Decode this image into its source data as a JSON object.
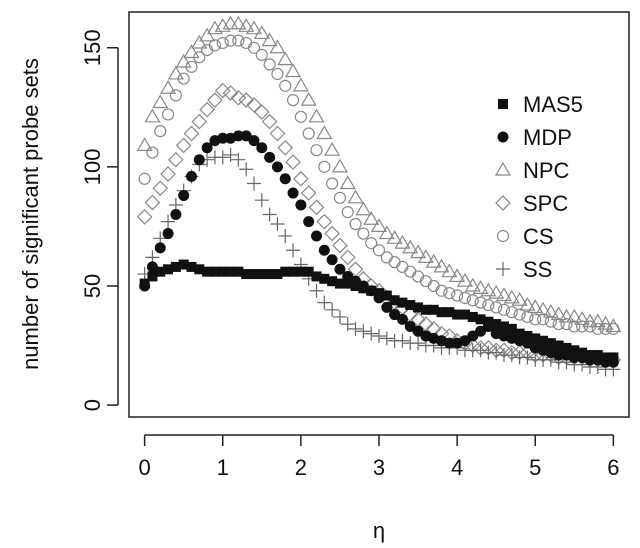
{
  "chart_data": {
    "type": "scatter",
    "xlabel": "η",
    "ylabel": "number of significant probe sets",
    "xlim": [
      -0.2,
      6.2
    ],
    "ylim": [
      -5,
      165
    ],
    "xticks": [
      "0",
      "1",
      "2",
      "3",
      "4",
      "5",
      "6"
    ],
    "yticks": [
      "0",
      "50",
      "100",
      "150"
    ],
    "legend_position": "right",
    "grid": false,
    "x": [
      0.0,
      0.1,
      0.2,
      0.3,
      0.4,
      0.5,
      0.6,
      0.7,
      0.8,
      0.9,
      1.0,
      1.1,
      1.2,
      1.3,
      1.4,
      1.5,
      1.6,
      1.7,
      1.8,
      1.9,
      2.0,
      2.1,
      2.2,
      2.3,
      2.4,
      2.5,
      2.6,
      2.7,
      2.8,
      2.9,
      3.0,
      3.1,
      3.2,
      3.3,
      3.4,
      3.5,
      3.6,
      3.7,
      3.8,
      3.9,
      4.0,
      4.1,
      4.2,
      4.3,
      4.4,
      4.5,
      4.6,
      4.7,
      4.8,
      4.9,
      5.0,
      5.1,
      5.2,
      5.3,
      5.4,
      5.5,
      5.6,
      5.7,
      5.8,
      5.9,
      6.0
    ],
    "series": [
      {
        "name": "MAS5",
        "marker": "square",
        "values": [
          51,
          54,
          56,
          57,
          58,
          59,
          58,
          57,
          56,
          56,
          56,
          56,
          56,
          55,
          55,
          55,
          55,
          55,
          56,
          56,
          56,
          56,
          54,
          53,
          52,
          51,
          51,
          50,
          49,
          48,
          47,
          46,
          44,
          43,
          42,
          41,
          40,
          40,
          39,
          39,
          38,
          38,
          37,
          36,
          35,
          34,
          33,
          32,
          30,
          29,
          28,
          27,
          26,
          25,
          24,
          23,
          22,
          21,
          21,
          20,
          20
        ]
      },
      {
        "name": "MDP",
        "marker": "circle",
        "values": [
          50,
          58,
          66,
          72,
          80,
          88,
          96,
          103,
          108,
          111,
          112,
          112,
          113,
          113,
          111,
          108,
          104,
          100,
          95,
          89,
          84,
          77,
          71,
          65,
          61,
          57,
          54,
          52,
          50,
          48,
          45,
          41,
          38,
          36,
          33,
          31,
          29,
          28,
          27,
          26,
          26,
          27,
          29,
          31,
          33,
          30,
          29,
          28,
          27,
          26,
          24,
          23,
          22,
          21,
          21,
          20,
          20,
          19,
          19,
          18,
          18
        ]
      },
      {
        "name": "NPC",
        "marker": "triangle",
        "values": [
          109,
          121,
          127,
          133,
          139,
          144,
          148,
          152,
          155,
          158,
          159,
          160,
          160,
          159,
          158,
          156,
          153,
          150,
          145,
          140,
          134,
          128,
          121,
          114,
          107,
          100,
          93,
          87,
          82,
          78,
          75,
          72,
          70,
          68,
          66,
          64,
          62,
          60,
          58,
          56,
          54,
          52,
          50,
          49,
          48,
          47,
          46,
          45,
          44,
          42,
          41,
          40,
          39,
          38,
          37,
          37,
          36,
          35,
          35,
          34,
          33
        ]
      },
      {
        "name": "SPC",
        "marker": "diamond",
        "values": [
          79,
          85,
          91,
          97,
          103,
          109,
          114,
          119,
          124,
          128,
          132,
          131,
          129,
          128,
          126,
          123,
          119,
          114,
          108,
          102,
          95,
          89,
          83,
          77,
          72,
          67,
          62,
          57,
          53,
          50,
          48,
          45,
          43,
          41,
          38,
          36,
          34,
          32,
          30,
          29,
          27,
          26,
          25,
          24,
          24,
          23,
          23,
          22,
          22,
          22,
          21,
          21,
          21,
          20,
          20,
          20,
          20,
          19,
          19,
          19,
          19
        ]
      },
      {
        "name": "CS",
        "marker": "circle-open",
        "values": [
          95,
          106,
          115,
          122,
          130,
          137,
          142,
          146,
          149,
          151,
          152,
          153,
          153,
          152,
          150,
          147,
          143,
          139,
          134,
          128,
          121,
          114,
          107,
          100,
          93,
          87,
          81,
          76,
          72,
          68,
          65,
          62,
          60,
          58,
          56,
          54,
          52,
          50,
          48,
          47,
          46,
          45,
          44,
          43,
          42,
          41,
          40,
          39,
          38,
          37,
          36,
          36,
          35,
          34,
          34,
          33,
          33,
          33,
          32,
          32,
          32
        ]
      },
      {
        "name": "SS",
        "marker": "plus",
        "values": [
          55,
          62,
          70,
          77,
          84,
          90,
          96,
          101,
          103,
          104,
          104,
          105,
          103,
          99,
          93,
          86,
          80,
          76,
          71,
          65,
          59,
          53,
          48,
          43,
          40,
          37,
          34,
          32,
          31,
          30,
          29,
          28,
          27,
          27,
          26,
          26,
          25,
          25,
          24,
          24,
          24,
          23,
          23,
          23,
          22,
          22,
          21,
          21,
          20,
          20,
          19,
          19,
          19,
          18,
          18,
          17,
          17,
          16,
          16,
          15,
          15
        ]
      }
    ]
  }
}
